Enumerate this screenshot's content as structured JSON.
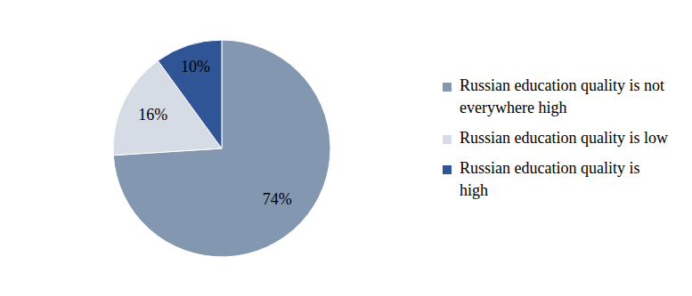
{
  "chart_data": {
    "type": "pie",
    "categories": [
      "Russian education quality is not everywhere high",
      "Russian education quality is low",
      "Russian education quality is high"
    ],
    "values": [
      74,
      16,
      10
    ],
    "value_labels": [
      "74%",
      "16%",
      "10%"
    ],
    "colors": [
      "#8497b0",
      "#d6dce5",
      "#2f5597"
    ],
    "data_labels": true,
    "legend": "right"
  }
}
